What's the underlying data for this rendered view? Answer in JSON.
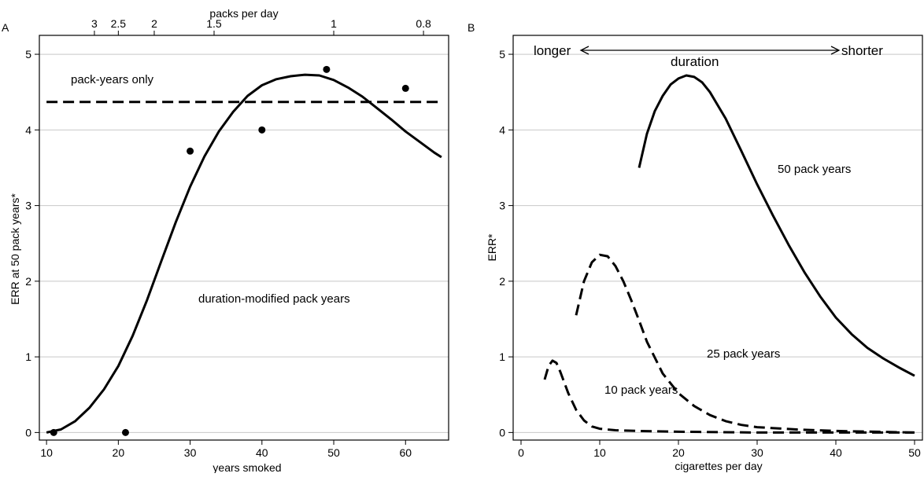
{
  "chart_data": [
    {
      "type": "line",
      "panel": "A",
      "xlabel": "years smoked",
      "ylabel": "ERR at 50 pack years*",
      "secondary_xlabel": "packs per day",
      "xlim": [
        9,
        66
      ],
      "ylim": [
        -0.1,
        5.25
      ],
      "x_ticks": [
        10,
        20,
        30,
        40,
        50,
        60
      ],
      "y_ticks": [
        0,
        1,
        2,
        3,
        4,
        5
      ],
      "top_ticks": [
        {
          "label": "3",
          "packs": 3
        },
        {
          "label": "2.5",
          "packs": 2.5
        },
        {
          "label": "2",
          "packs": 2
        },
        {
          "label": "1.5",
          "packs": 1.5
        },
        {
          "label": "1",
          "packs": 1
        },
        {
          "label": "0.8",
          "packs": 0.8
        }
      ],
      "grid": "horizontal",
      "series": [
        {
          "style": "dashed",
          "x": [
            10,
            65
          ],
          "y": [
            4.37,
            4.37
          ]
        },
        {
          "style": "solid",
          "x": [
            10,
            12,
            14,
            16,
            18,
            20,
            22,
            24,
            26,
            28,
            30,
            32,
            34,
            36,
            38,
            40,
            42,
            44,
            46,
            48,
            50,
            52,
            54,
            56,
            58,
            60,
            62,
            64,
            65
          ],
          "y": [
            0.0,
            0.04,
            0.15,
            0.33,
            0.57,
            0.88,
            1.28,
            1.75,
            2.27,
            2.78,
            3.25,
            3.65,
            3.98,
            4.24,
            4.45,
            4.59,
            4.67,
            4.71,
            4.73,
            4.72,
            4.66,
            4.56,
            4.44,
            4.29,
            4.14,
            3.98,
            3.84,
            3.7,
            3.64
          ]
        },
        {
          "style": "points",
          "x": [
            11,
            21,
            30,
            40,
            49,
            60
          ],
          "y": [
            0.0,
            0.0,
            3.72,
            4.0,
            4.8,
            4.55
          ]
        }
      ],
      "annotations": [
        "pack-years only",
        "duration-modified pack years"
      ]
    },
    {
      "type": "line",
      "panel": "B",
      "xlabel": "cigarettes per day",
      "ylabel": "ERR*",
      "xlim": [
        -1,
        51
      ],
      "ylim": [
        -0.1,
        5.25
      ],
      "x_ticks": [
        0,
        10,
        20,
        30,
        40,
        50
      ],
      "y_ticks": [
        0,
        1,
        2,
        3,
        4,
        5
      ],
      "grid": "horizontal",
      "series": [
        {
          "name": "50 pack years",
          "style": "solid",
          "x": [
            15,
            16,
            17,
            18,
            19,
            20,
            21,
            22,
            23,
            24,
            26,
            28,
            30,
            32,
            34,
            36,
            38,
            40,
            42,
            44,
            46,
            48,
            50
          ],
          "y": [
            3.5,
            3.95,
            4.25,
            4.45,
            4.6,
            4.68,
            4.72,
            4.7,
            4.63,
            4.5,
            4.15,
            3.72,
            3.28,
            2.87,
            2.48,
            2.12,
            1.8,
            1.52,
            1.3,
            1.12,
            0.98,
            0.86,
            0.75
          ]
        },
        {
          "name": "25 pack years",
          "style": "dashed",
          "x": [
            7,
            8,
            9,
            10,
            11,
            12,
            13,
            14,
            15,
            16,
            18,
            20,
            22,
            24,
            26,
            28,
            30,
            35,
            40,
            45,
            50
          ],
          "y": [
            1.55,
            2.0,
            2.25,
            2.35,
            2.33,
            2.2,
            2.0,
            1.75,
            1.48,
            1.2,
            0.78,
            0.52,
            0.35,
            0.23,
            0.15,
            0.1,
            0.07,
            0.04,
            0.02,
            0.01,
            0.0
          ]
        },
        {
          "name": "10 pack years",
          "style": "dashed",
          "x": [
            3,
            3.5,
            4,
            4.5,
            5,
            6,
            7,
            8,
            9,
            10,
            12,
            15,
            20,
            30,
            40,
            50
          ],
          "y": [
            0.7,
            0.88,
            0.95,
            0.92,
            0.8,
            0.52,
            0.3,
            0.16,
            0.08,
            0.05,
            0.03,
            0.02,
            0.01,
            0.0,
            0.0,
            0.0
          ]
        }
      ],
      "annotations": {
        "longer": "longer",
        "shorter": "shorter",
        "duration": "duration"
      }
    }
  ]
}
